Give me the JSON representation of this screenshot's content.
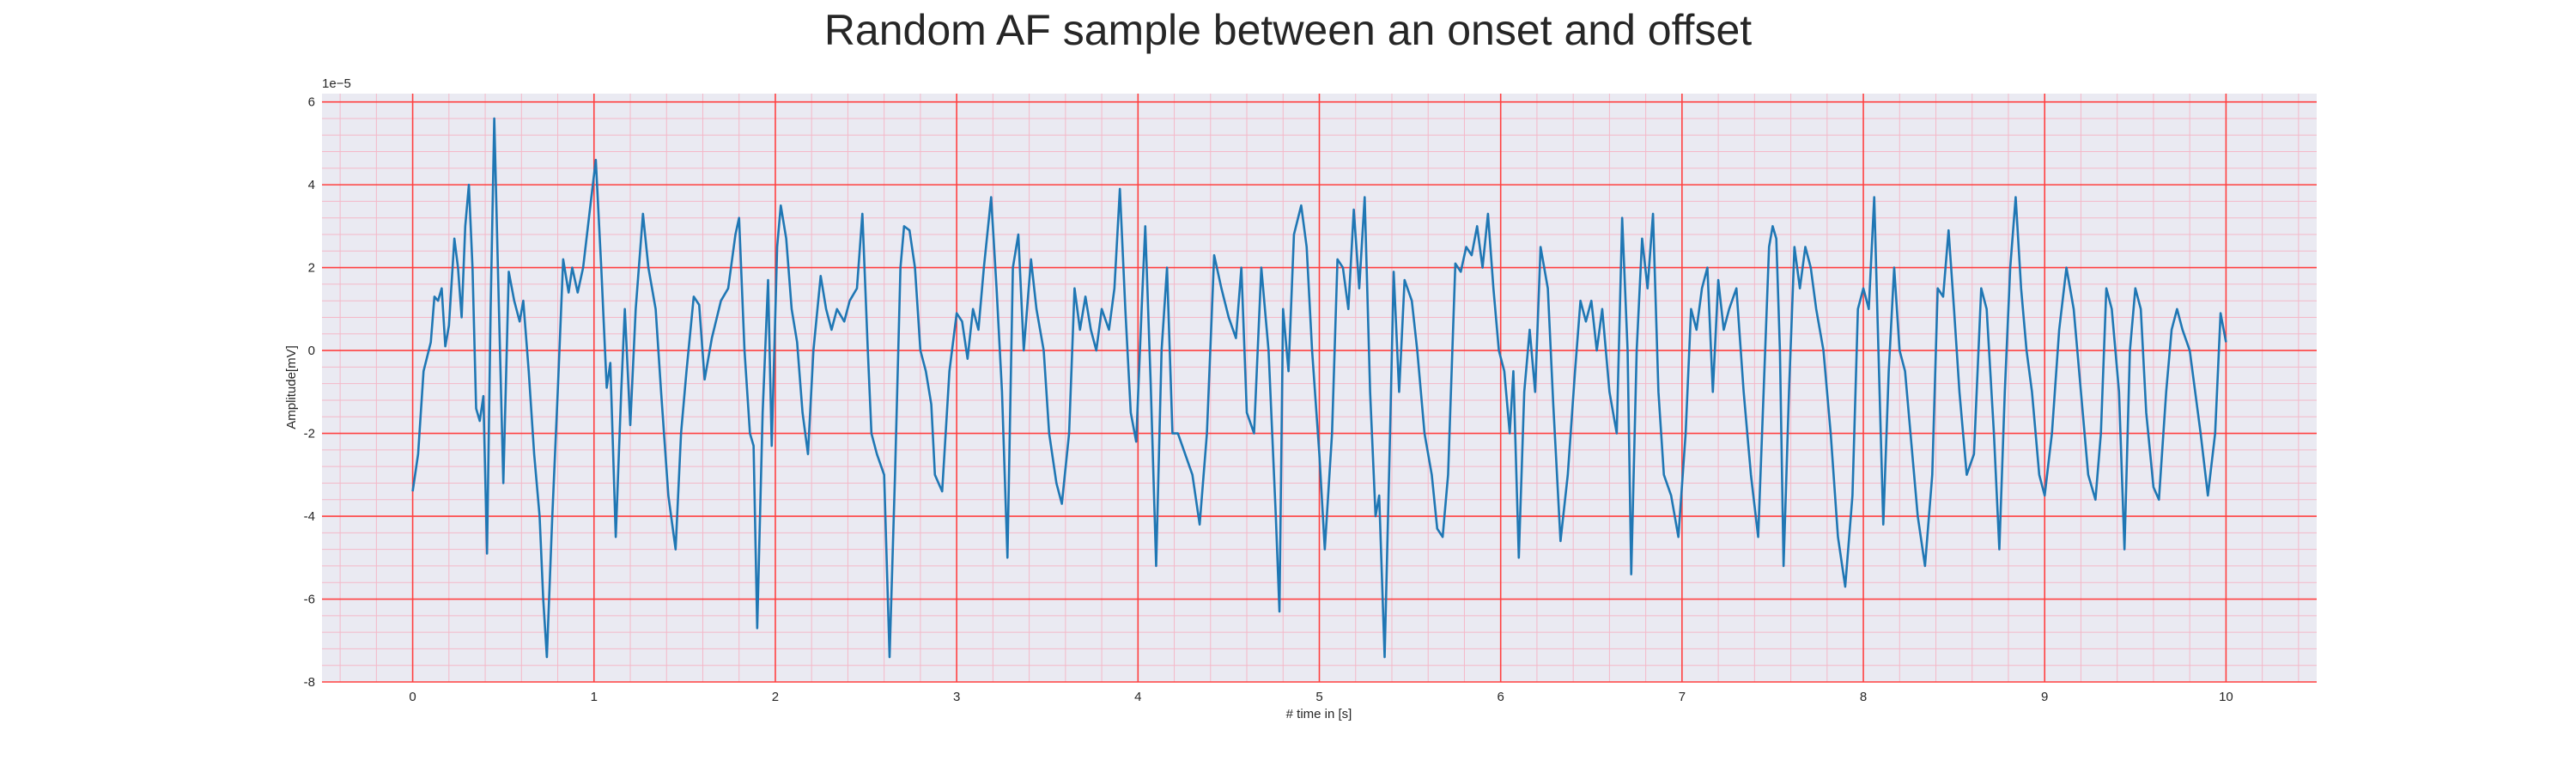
{
  "chart_data": {
    "type": "line",
    "title": "Random AF sample between an onset and offset",
    "xlabel": "# time in [s]",
    "ylabel": "Amplitude[mV]",
    "offset_label": "1e−5",
    "color": "#1f77b4",
    "grid": true,
    "grid_color": "#ff4040",
    "minor_grid_color": "#f4b8c8",
    "background": "#eaeaf2",
    "xlim": [
      -0.5,
      10.5
    ],
    "ylim": [
      -8,
      6.2
    ],
    "xticks": [
      0,
      1,
      2,
      3,
      4,
      5,
      6,
      7,
      8,
      9,
      10
    ],
    "yticks": [
      -8,
      -6,
      -4,
      -2,
      0,
      2,
      4,
      6
    ],
    "xminorticks": [
      -0.4,
      -0.2,
      0.2,
      0.4,
      0.6,
      0.8,
      1.2,
      1.4,
      1.6,
      1.8,
      2.2,
      2.4,
      2.6,
      2.8,
      3.2,
      3.4,
      3.6,
      3.8,
      4.2,
      4.4,
      4.6,
      4.8,
      5.2,
      5.4,
      5.6,
      5.8,
      6.2,
      6.4,
      6.6,
      6.8,
      7.2,
      7.4,
      7.6,
      7.8,
      8.2,
      8.4,
      8.6,
      8.8,
      9.2,
      9.4,
      9.6,
      9.8,
      10.2,
      10.4
    ],
    "yminorticks": [
      -7.6,
      -7.2,
      -6.8,
      -6.4,
      -5.6,
      -5.2,
      -4.8,
      -4.4,
      -3.6,
      -3.2,
      -2.8,
      -2.4,
      -1.6,
      -1.2,
      -0.8,
      -0.4,
      0.4,
      0.8,
      1.2,
      1.6,
      2.4,
      2.8,
      3.2,
      3.6,
      4.4,
      4.8,
      5.2,
      5.6
    ],
    "x": [
      0,
      0.03,
      0.06,
      0.1,
      0.12,
      0.14,
      0.16,
      0.18,
      0.2,
      0.22,
      0.23,
      0.25,
      0.27,
      0.29,
      0.31,
      0.33,
      0.35,
      0.37,
      0.39,
      0.41,
      0.43,
      0.45,
      0.47,
      0.5,
      0.53,
      0.56,
      0.59,
      0.61,
      0.64,
      0.67,
      0.7,
      0.72,
      0.74,
      0.77,
      0.8,
      0.83,
      0.86,
      0.88,
      0.91,
      0.94,
      0.98,
      1.01,
      1.04,
      1.07,
      1.09,
      1.12,
      1.15,
      1.17,
      1.2,
      1.23,
      1.27,
      1.3,
      1.34,
      1.37,
      1.41,
      1.45,
      1.48,
      1.51,
      1.55,
      1.58,
      1.61,
      1.65,
      1.7,
      1.74,
      1.78,
      1.8,
      1.83,
      1.86,
      1.88,
      1.9,
      1.93,
      1.96,
      1.98,
      2.01,
      2.03,
      2.06,
      2.09,
      2.12,
      2.15,
      2.18,
      2.21,
      2.25,
      2.28,
      2.31,
      2.34,
      2.38,
      2.41,
      2.45,
      2.48,
      2.51,
      2.53,
      2.56,
      2.6,
      2.63,
      2.66,
      2.69,
      2.71,
      2.74,
      2.77,
      2.8,
      2.83,
      2.86,
      2.88,
      2.92,
      2.96,
      3.0,
      3.03,
      3.06,
      3.09,
      3.12,
      3.15,
      3.19,
      3.22,
      3.25,
      3.28,
      3.31,
      3.34,
      3.37,
      3.41,
      3.44,
      3.48,
      3.51,
      3.55,
      3.58,
      3.62,
      3.65,
      3.68,
      3.71,
      3.74,
      3.77,
      3.8,
      3.84,
      3.87,
      3.9,
      3.93,
      3.96,
      3.99,
      4.02,
      4.04,
      4.07,
      4.1,
      4.13,
      4.16,
      4.19,
      4.22,
      4.26,
      4.3,
      4.34,
      4.38,
      4.42,
      4.46,
      4.5,
      4.54,
      4.57,
      4.6,
      4.64,
      4.68,
      4.72,
      4.76,
      4.78,
      4.8,
      4.83,
      4.86,
      4.9,
      4.93,
      4.96,
      5.0,
      5.03,
      5.07,
      5.1,
      5.13,
      5.16,
      5.19,
      5.22,
      5.25,
      5.28,
      5.31,
      5.33,
      5.36,
      5.39,
      5.41,
      5.44,
      5.47,
      5.51,
      5.54,
      5.58,
      5.62,
      5.65,
      5.68,
      5.71,
      5.75,
      5.78,
      5.81,
      5.84,
      5.87,
      5.9,
      5.93,
      5.96,
      5.99,
      6.02,
      6.05,
      6.07,
      6.1,
      6.13,
      6.16,
      6.19,
      6.22,
      6.26,
      6.29,
      6.33,
      6.37,
      6.41,
      6.44,
      6.47,
      6.5,
      6.53,
      6.56,
      6.6,
      6.64,
      6.67,
      6.7,
      6.72,
      6.75,
      6.78,
      6.81,
      6.84,
      6.87,
      6.9,
      6.94,
      6.98,
      7.02,
      7.05,
      7.08,
      7.11,
      7.14,
      7.17,
      7.2,
      7.23,
      7.26,
      7.3,
      7.34,
      7.38,
      7.42,
      7.45,
      7.48,
      7.5,
      7.52,
      7.54,
      7.56,
      7.59,
      7.62,
      7.65,
      7.68,
      7.71,
      7.74,
      7.78,
      7.82,
      7.86,
      7.9,
      7.94,
      7.97,
      8.0,
      8.03,
      8.06,
      8.08,
      8.11,
      8.14,
      8.17,
      8.2,
      8.23,
      8.26,
      8.3,
      8.34,
      8.38,
      8.41,
      8.44,
      8.47,
      8.5,
      8.53,
      8.57,
      8.61,
      8.65,
      8.68,
      8.72,
      8.75,
      8.78,
      8.81,
      8.84,
      8.87,
      8.9,
      8.93,
      8.97,
      9.0,
      9.04,
      9.08,
      9.12,
      9.16,
      9.2,
      9.24,
      9.28,
      9.31,
      9.34,
      9.37,
      9.41,
      9.44,
      9.47,
      9.5,
      9.53,
      9.56,
      9.6,
      9.63,
      9.67,
      9.7,
      9.73,
      9.76,
      9.8,
      9.83,
      9.86,
      9.9,
      9.94,
      9.97,
      10.0
    ],
    "values": [
      -3.4,
      -2.5,
      -0.5,
      0.2,
      1.3,
      1.2,
      1.5,
      0.1,
      0.6,
      2.0,
      2.7,
      2.0,
      0.8,
      3.0,
      4.0,
      2.0,
      -1.4,
      -1.7,
      -1.1,
      -4.9,
      1.0,
      5.6,
      2.0,
      -3.2,
      1.9,
      1.2,
      0.7,
      1.2,
      -0.5,
      -2.5,
      -4.0,
      -6.0,
      -7.4,
      -4.0,
      -1.0,
      2.2,
      1.4,
      2.0,
      1.4,
      2.0,
      3.5,
      4.6,
      2.0,
      -0.9,
      -0.3,
      -4.5,
      -1.0,
      1.0,
      -1.8,
      1.0,
      3.3,
      2.0,
      1.0,
      -1.0,
      -3.5,
      -4.8,
      -2.0,
      -0.5,
      1.3,
      1.1,
      -0.7,
      0.3,
      1.2,
      1.5,
      2.8,
      3.2,
      0.0,
      -2.0,
      -2.3,
      -6.7,
      -1.5,
      1.7,
      -2.3,
      2.5,
      3.5,
      2.7,
      1.0,
      0.2,
      -1.5,
      -2.5,
      0.0,
      1.8,
      1.0,
      0.5,
      1.0,
      0.7,
      1.2,
      1.5,
      3.3,
      0.0,
      -2.0,
      -2.5,
      -3.0,
      -7.4,
      -3.0,
      2.0,
      3.0,
      2.9,
      2.0,
      0.0,
      -0.5,
      -1.3,
      -3.0,
      -3.4,
      -0.5,
      0.9,
      0.7,
      -0.2,
      1.0,
      0.5,
      2.0,
      3.7,
      1.5,
      -1.0,
      -5.0,
      2.0,
      2.8,
      0.0,
      2.2,
      1.0,
      0.0,
      -2.0,
      -3.2,
      -3.7,
      -2.0,
      1.5,
      0.5,
      1.3,
      0.5,
      0.0,
      1.0,
      0.5,
      1.5,
      3.9,
      1.0,
      -1.5,
      -2.2,
      1.0,
      3.0,
      -0.8,
      -5.2,
      0.0,
      2.0,
      -2.0,
      -2.0,
      -2.5,
      -3.0,
      -4.2,
      -2.0,
      2.3,
      1.5,
      0.8,
      0.3,
      2.0,
      -1.5,
      -2.0,
      2.0,
      0.0,
      -4.0,
      -6.3,
      1.0,
      -0.5,
      2.8,
      3.5,
      2.5,
      0.0,
      -2.5,
      -4.8,
      -2.0,
      2.2,
      2.0,
      1.0,
      3.4,
      1.5,
      3.7,
      -1.0,
      -4.0,
      -3.5,
      -7.4,
      -2.0,
      1.9,
      -1.0,
      1.7,
      1.2,
      0.0,
      -2.0,
      -3.0,
      -4.3,
      -4.5,
      -3.0,
      2.1,
      1.9,
      2.5,
      2.3,
      3.0,
      2.0,
      3.3,
      1.5,
      0.0,
      -0.5,
      -2.0,
      -0.5,
      -5.0,
      -1.0,
      0.5,
      -1.0,
      2.5,
      1.5,
      -1.3,
      -4.6,
      -3.0,
      -0.5,
      1.2,
      0.7,
      1.2,
      0.0,
      1.0,
      -1.0,
      -2.0,
      3.2,
      0.0,
      -5.4,
      0.0,
      2.7,
      1.5,
      3.3,
      -1.0,
      -3.0,
      -3.5,
      -4.5,
      -2.0,
      1.0,
      0.5,
      1.5,
      2.0,
      -1.0,
      1.7,
      0.5,
      1.0,
      1.5,
      -1.0,
      -3.0,
      -4.5,
      -1.0,
      2.5,
      3.0,
      2.7,
      0.0,
      -5.2,
      -1.0,
      2.5,
      1.5,
      2.5,
      2.0,
      1.0,
      0.0,
      -2.0,
      -4.5,
      -5.7,
      -3.5,
      1.0,
      1.5,
      1.0,
      3.7,
      0.5,
      -4.2,
      -0.5,
      2.0,
      0.0,
      -0.5,
      -2.0,
      -4.0,
      -5.2,
      -3.0,
      1.5,
      1.3,
      2.9,
      1.0,
      -1.0,
      -3.0,
      -2.5,
      1.5,
      1.0,
      -2.0,
      -4.8,
      -1.0,
      2.0,
      3.7,
      1.5,
      0.0,
      -1.0,
      -3.0,
      -3.5,
      -2.0,
      0.5,
      2.0,
      1.0,
      -1.0,
      -3.0,
      -3.6,
      -2.0,
      1.5,
      1.0,
      -1.0,
      -4.8,
      0.0,
      1.5,
      1.0,
      -1.5,
      -3.3,
      -3.6,
      -1.0,
      0.5,
      1.0,
      0.5,
      0.0,
      -1.0,
      -2.0,
      -3.5,
      -2.0,
      0.9,
      0.2
    ]
  }
}
